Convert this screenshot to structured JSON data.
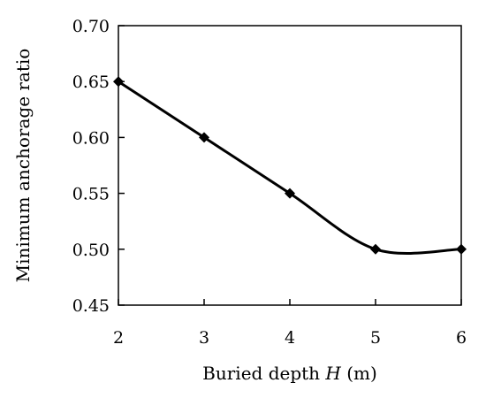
{
  "chart_data": {
    "type": "line",
    "title": "",
    "xlabel_prefix": "Buried depth ",
    "xlabel_var": "H",
    "xlabel_suffix": " (m)",
    "ylabel": "Minimum anchorage ratio",
    "x": [
      2,
      3,
      4,
      5,
      6
    ],
    "x_ticks": [
      "2",
      "3",
      "4",
      "5",
      "6"
    ],
    "y_ticks": [
      "0.45",
      "0.50",
      "0.55",
      "0.60",
      "0.65",
      "0.70"
    ],
    "xlim": [
      2,
      6
    ],
    "ylim": [
      0.45,
      0.7
    ],
    "series": [
      {
        "values": [
          0.65,
          0.6,
          0.55,
          0.5,
          0.5
        ],
        "color": "#000000",
        "marker": "diamond",
        "line": "smooth"
      }
    ],
    "grid": false,
    "legend": "none"
  }
}
